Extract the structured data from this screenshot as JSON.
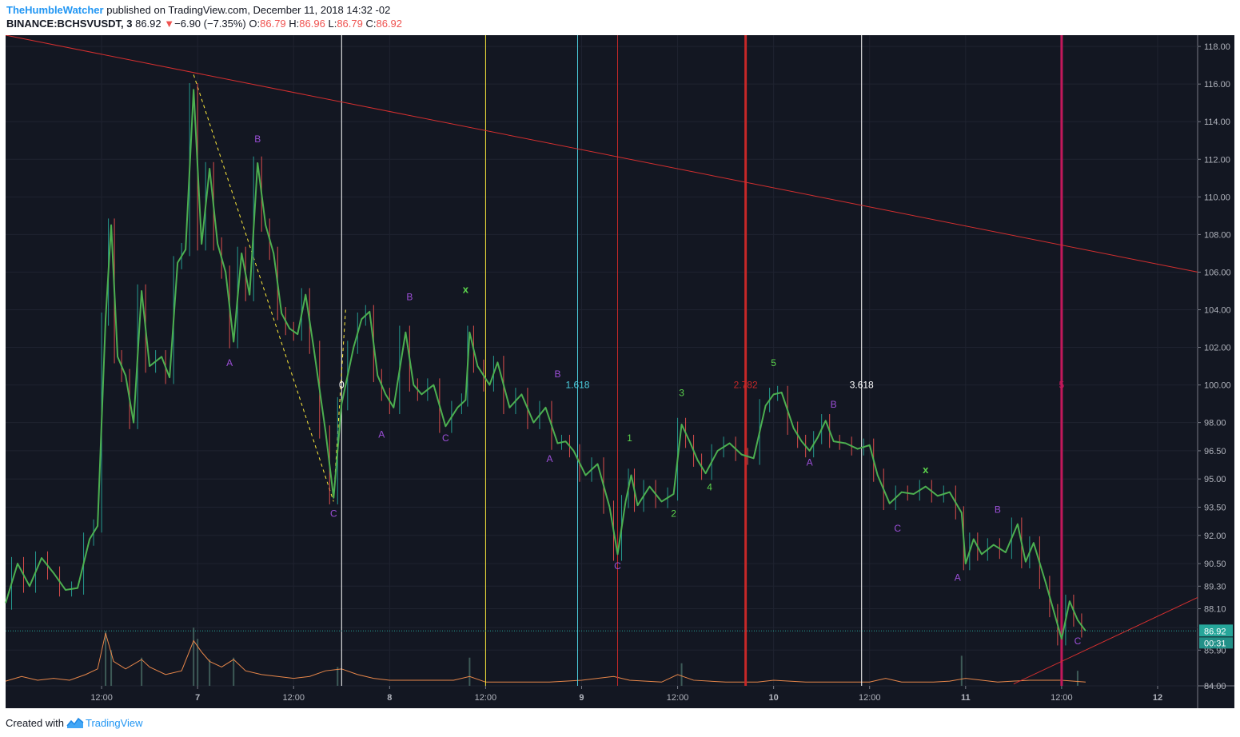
{
  "header": {
    "author": "TheHumbleWatcher",
    "published": "published on TradingView.com, December 11, 2018 14:32 -02",
    "symbol": "BINANCE:BCHSVUSDT, 3",
    "last": "86.92",
    "change_arrow": "▼",
    "change": "−6.90 (−7.35%)",
    "o_label": "O:",
    "o_value": "86.79",
    "h_label": "H:",
    "h_value": "86.96",
    "l_label": "L:",
    "l_value": "86.79",
    "c_label": "C:",
    "c_value": "86.92"
  },
  "footer": {
    "created": "Created with",
    "brand": "TradingView"
  },
  "colors": {
    "background": "#131722",
    "up": "#26a69a",
    "down": "#ef5350",
    "wave": "#4caf50",
    "volume_ma": "#e8874a",
    "trendline": "#d32f2f",
    "label_purple": "#9c4fd8",
    "label_green": "#5bd44c"
  },
  "chart_data": {
    "type": "line",
    "title": "",
    "xlabel": "",
    "ylabel": "",
    "y_axis_side": "right",
    "ylim": [
      84.0,
      118.6
    ],
    "y_ticks": [
      84.0,
      85.9,
      87.1,
      88.1,
      89.3,
      90.5,
      92.0,
      93.5,
      95.0,
      96.5,
      98.0,
      100.0,
      102.0,
      104.0,
      106.0,
      108.0,
      110.0,
      112.0,
      114.0,
      116.0,
      118.0
    ],
    "y_tick_labels": [
      "84.00",
      "85.90",
      "",
      "88.10",
      "89.30",
      "90.50",
      "92.00",
      "93.50",
      "95.00",
      "96.50",
      "98.00",
      "100.00",
      "102.00",
      "104.00",
      "106.00",
      "108.00",
      "110.00",
      "112.00",
      "114.00",
      "116.00",
      "118.00"
    ],
    "x_unit": "hours since start of Dec 6, 2018",
    "xlim": [
      0,
      149
    ],
    "x_ticks": [
      {
        "x": 12,
        "label": "12:00"
      },
      {
        "x": 24,
        "label": "7"
      },
      {
        "x": 36,
        "label": "12:00"
      },
      {
        "x": 48,
        "label": "8"
      },
      {
        "x": 60,
        "label": "12:00"
      },
      {
        "x": 72,
        "label": "9"
      },
      {
        "x": 84,
        "label": "12:00"
      },
      {
        "x": 96,
        "label": "10"
      },
      {
        "x": 108,
        "label": "12:00"
      },
      {
        "x": 120,
        "label": "11"
      },
      {
        "x": 132,
        "label": "12:00"
      },
      {
        "x": 144,
        "label": "12"
      }
    ],
    "price_series": {
      "name": "",
      "points": [
        [
          0,
          88.4
        ],
        [
          1.5,
          90.5
        ],
        [
          3,
          89.3
        ],
        [
          4.5,
          90.8
        ],
        [
          6,
          90.0
        ],
        [
          7.5,
          89.1
        ],
        [
          9,
          89.2
        ],
        [
          10.5,
          91.8
        ],
        [
          11.5,
          92.5
        ],
        [
          12.5,
          103.5
        ],
        [
          13.2,
          108.5
        ],
        [
          14,
          101.5
        ],
        [
          15,
          100.5
        ],
        [
          16,
          98.0
        ],
        [
          17,
          105.0
        ],
        [
          18,
          101.0
        ],
        [
          19.5,
          101.5
        ],
        [
          20.5,
          100.4
        ],
        [
          21.5,
          106.5
        ],
        [
          22.5,
          107.2
        ],
        [
          23.5,
          115.7
        ],
        [
          24.5,
          107.5
        ],
        [
          25.5,
          111.5
        ],
        [
          26.5,
          107.5
        ],
        [
          27.5,
          106.0
        ],
        [
          28.5,
          102.3
        ],
        [
          29.5,
          107.0
        ],
        [
          30.5,
          104.8
        ],
        [
          31.5,
          111.8
        ],
        [
          32.5,
          108.5
        ],
        [
          33.5,
          107.0
        ],
        [
          34.5,
          103.8
        ],
        [
          35.5,
          103.0
        ],
        [
          36.5,
          102.7
        ],
        [
          37.5,
          104.8
        ],
        [
          38.5,
          102.0
        ],
        [
          40,
          97.5
        ],
        [
          41,
          94.0
        ],
        [
          42,
          99.0
        ],
        [
          43.5,
          102.0
        ],
        [
          44.5,
          103.5
        ],
        [
          45.5,
          103.9
        ],
        [
          46.5,
          100.5
        ],
        [
          47.5,
          99.5
        ],
        [
          48.5,
          98.8
        ],
        [
          50,
          102.8
        ],
        [
          51,
          100.0
        ],
        [
          52,
          99.5
        ],
        [
          53.5,
          100.0
        ],
        [
          55,
          97.8
        ],
        [
          56.5,
          98.8
        ],
        [
          57.5,
          99.2
        ],
        [
          58,
          102.8
        ],
        [
          59,
          101.0
        ],
        [
          60.5,
          100.0
        ],
        [
          61.5,
          101.2
        ],
        [
          63,
          98.8
        ],
        [
          64.5,
          99.5
        ],
        [
          66,
          98.0
        ],
        [
          67.5,
          98.8
        ],
        [
          69,
          96.9
        ],
        [
          70,
          97.0
        ],
        [
          71,
          96.5
        ],
        [
          72.5,
          95.2
        ],
        [
          74,
          95.8
        ],
        [
          75.5,
          93.5
        ],
        [
          76.5,
          91.0
        ],
        [
          77.5,
          93.8
        ],
        [
          78.2,
          95.2
        ],
        [
          79,
          93.6
        ],
        [
          80.5,
          94.6
        ],
        [
          82,
          93.8
        ],
        [
          83.5,
          94.2
        ],
        [
          84.5,
          97.9
        ],
        [
          85.5,
          97.0
        ],
        [
          86.5,
          96.0
        ],
        [
          87.5,
          95.3
        ],
        [
          89,
          96.5
        ],
        [
          90.5,
          96.9
        ],
        [
          92,
          96.3
        ],
        [
          93.5,
          96.1
        ],
        [
          95,
          98.9
        ],
        [
          96,
          99.5
        ],
        [
          97,
          99.6
        ],
        [
          98.5,
          97.7
        ],
        [
          99.5,
          97.0
        ],
        [
          100.5,
          96.5
        ],
        [
          101.5,
          97.2
        ],
        [
          102.5,
          98.1
        ],
        [
          103.5,
          97.0
        ],
        [
          105,
          96.9
        ],
        [
          106.5,
          96.6
        ],
        [
          108,
          96.8
        ],
        [
          109,
          95.2
        ],
        [
          110.5,
          93.7
        ],
        [
          112,
          94.3
        ],
        [
          113.5,
          94.2
        ],
        [
          115,
          94.6
        ],
        [
          116.5,
          94.1
        ],
        [
          118,
          94.3
        ],
        [
          119.5,
          93.2
        ],
        [
          120,
          90.5
        ],
        [
          121,
          91.8
        ],
        [
          122,
          91.0
        ],
        [
          123.5,
          91.5
        ],
        [
          125,
          91.1
        ],
        [
          126.5,
          92.6
        ],
        [
          127.5,
          90.6
        ],
        [
          128.5,
          91.6
        ],
        [
          130,
          89.5
        ],
        [
          131,
          88.0
        ],
        [
          132,
          86.5
        ],
        [
          133,
          88.5
        ],
        [
          134,
          87.5
        ],
        [
          135,
          86.92
        ]
      ]
    },
    "volume_ma": [
      [
        0,
        84.25
      ],
      [
        2,
        84.5
      ],
      [
        4,
        84.3
      ],
      [
        6,
        84.4
      ],
      [
        8,
        84.3
      ],
      [
        10,
        84.6
      ],
      [
        11.5,
        84.9
      ],
      [
        12.5,
        86.8
      ],
      [
        13.5,
        85.3
      ],
      [
        15,
        84.9
      ],
      [
        17,
        85.4
      ],
      [
        18,
        85.0
      ],
      [
        20,
        84.6
      ],
      [
        22,
        84.8
      ],
      [
        23.5,
        86.4
      ],
      [
        24.5,
        85.8
      ],
      [
        25.5,
        85.3
      ],
      [
        27,
        85.0
      ],
      [
        28.5,
        85.4
      ],
      [
        30,
        84.8
      ],
      [
        32,
        84.6
      ],
      [
        34,
        84.5
      ],
      [
        36,
        84.4
      ],
      [
        38,
        84.5
      ],
      [
        40,
        84.8
      ],
      [
        42,
        84.9
      ],
      [
        44,
        84.6
      ],
      [
        46,
        84.4
      ],
      [
        48,
        84.3
      ],
      [
        52,
        84.3
      ],
      [
        56,
        84.3
      ],
      [
        58,
        84.5
      ],
      [
        60,
        84.2
      ],
      [
        64,
        84.2
      ],
      [
        68,
        84.2
      ],
      [
        72,
        84.3
      ],
      [
        76,
        84.5
      ],
      [
        78,
        84.3
      ],
      [
        82,
        84.2
      ],
      [
        84,
        84.6
      ],
      [
        86,
        84.3
      ],
      [
        90,
        84.2
      ],
      [
        94,
        84.2
      ],
      [
        96,
        84.3
      ],
      [
        100,
        84.2
      ],
      [
        104,
        84.2
      ],
      [
        108,
        84.2
      ],
      [
        110,
        84.4
      ],
      [
        112,
        84.2
      ],
      [
        116,
        84.2
      ],
      [
        118,
        84.25
      ],
      [
        120,
        84.4
      ],
      [
        124,
        84.2
      ],
      [
        128,
        84.3
      ],
      [
        132,
        84.3
      ],
      [
        135,
        84.2
      ]
    ],
    "volume_bars": [
      [
        12.5,
        86.9
      ],
      [
        13.2,
        85.9
      ],
      [
        17,
        85.5
      ],
      [
        23.5,
        87.1
      ],
      [
        24,
        86.5
      ],
      [
        25.5,
        85.4
      ],
      [
        28.5,
        85.5
      ],
      [
        41.5,
        85.0
      ],
      [
        58,
        85.5
      ],
      [
        84.5,
        85.2
      ],
      [
        119.5,
        85.6
      ],
      [
        132,
        84.9
      ],
      [
        134,
        84.8
      ]
    ],
    "trendlines": [
      {
        "from": [
          0,
          118.6
        ],
        "to": [
          149,
          106.0
        ],
        "color": "#d32f2f"
      },
      {
        "from": [
          126,
          84.1
        ],
        "to": [
          149,
          88.7
        ],
        "color": "#d32f2f"
      }
    ],
    "dashed_lines": [
      {
        "from": [
          23.5,
          116.5
        ],
        "to": [
          41,
          93.8
        ],
        "color": "#ffeb3b"
      },
      {
        "from": [
          41,
          94.0
        ],
        "to": [
          42.5,
          104.0
        ],
        "color": "#ffeb3b"
      }
    ],
    "vertical_lines": [
      {
        "x": 42,
        "color": "#ffffff",
        "width": 1
      },
      {
        "x": 60,
        "color": "#ffeb3b",
        "width": 1
      },
      {
        "x": 71.5,
        "color": "#4dd0e1",
        "width": 1
      },
      {
        "x": 76.5,
        "color": "#c62828",
        "width": 1
      },
      {
        "x": 92.5,
        "color": "#c62828",
        "width": 3
      },
      {
        "x": 107,
        "color": "#ffffff",
        "width": 1
      },
      {
        "x": 132,
        "color": "#c2185b",
        "width": 3
      }
    ],
    "fib_labels": [
      {
        "x": 42,
        "y": 100.0,
        "text": "0",
        "color": "#ffffff"
      },
      {
        "x": 71.5,
        "y": 100.0,
        "text": "1.618",
        "color": "#4dd0e1"
      },
      {
        "x": 92.5,
        "y": 100.0,
        "text": "2.782",
        "color": "#c62828"
      },
      {
        "x": 107,
        "y": 100.0,
        "text": "3.618",
        "color": "#ffffff"
      },
      {
        "x": 132,
        "y": 100.0,
        "text": "5",
        "color": "#c2185b"
      }
    ],
    "wave_labels": [
      {
        "x": 28,
        "y": 101.0,
        "text": "A",
        "color": "#9c4fd8"
      },
      {
        "x": 31.5,
        "y": 112.9,
        "text": "B",
        "color": "#9c4fd8"
      },
      {
        "x": 41,
        "y": 93.0,
        "text": "C",
        "color": "#9c4fd8"
      },
      {
        "x": 47,
        "y": 97.2,
        "text": "A",
        "color": "#9c4fd8"
      },
      {
        "x": 50.5,
        "y": 104.5,
        "text": "B",
        "color": "#9c4fd8"
      },
      {
        "x": 55,
        "y": 97.0,
        "text": "C",
        "color": "#9c4fd8"
      },
      {
        "x": 57.5,
        "y": 104.9,
        "text": "x",
        "color": "#5bd44c"
      },
      {
        "x": 68,
        "y": 95.9,
        "text": "A",
        "color": "#9c4fd8"
      },
      {
        "x": 69,
        "y": 100.4,
        "text": "B",
        "color": "#9c4fd8"
      },
      {
        "x": 76.5,
        "y": 90.2,
        "text": "C",
        "color": "#9c4fd8"
      },
      {
        "x": 78,
        "y": 97.0,
        "text": "1",
        "color": "#5bd44c"
      },
      {
        "x": 83.5,
        "y": 93.0,
        "text": "2",
        "color": "#5bd44c"
      },
      {
        "x": 84.5,
        "y": 99.4,
        "text": "3",
        "color": "#5bd44c"
      },
      {
        "x": 88,
        "y": 94.4,
        "text": "4",
        "color": "#5bd44c"
      },
      {
        "x": 96,
        "y": 101.0,
        "text": "5",
        "color": "#5bd44c"
      },
      {
        "x": 100.5,
        "y": 95.7,
        "text": "A",
        "color": "#9c4fd8"
      },
      {
        "x": 103.5,
        "y": 98.8,
        "text": "B",
        "color": "#9c4fd8"
      },
      {
        "x": 111.5,
        "y": 92.2,
        "text": "C",
        "color": "#9c4fd8"
      },
      {
        "x": 115,
        "y": 95.3,
        "text": "x",
        "color": "#5bd44c"
      },
      {
        "x": 119,
        "y": 89.6,
        "text": "A",
        "color": "#9c4fd8"
      },
      {
        "x": 124,
        "y": 93.2,
        "text": "B",
        "color": "#9c4fd8"
      },
      {
        "x": 134,
        "y": 86.2,
        "text": "C",
        "color": "#9c4fd8"
      }
    ],
    "price_badge": {
      "value": 86.92,
      "label": "86.92",
      "timer": "00:31",
      "color": "#26a69a"
    }
  }
}
